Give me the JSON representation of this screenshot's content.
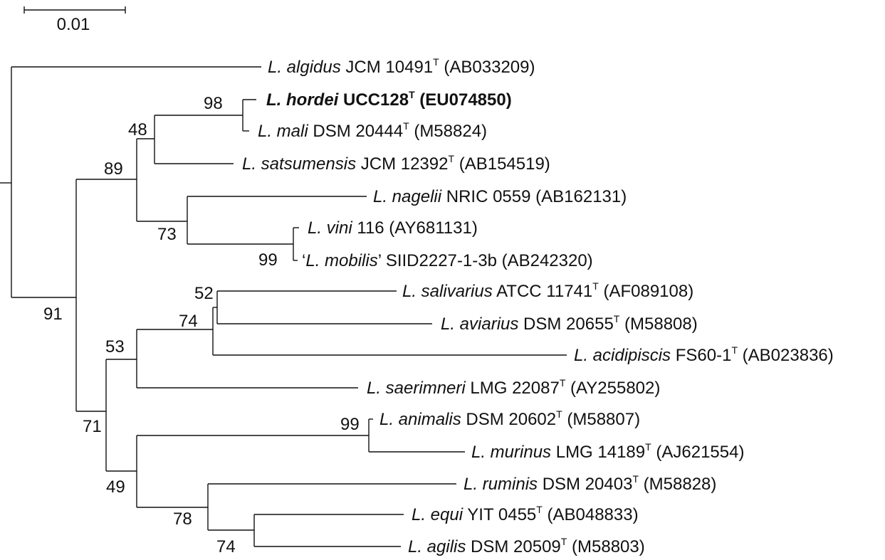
{
  "scale_bar": {
    "label": "0.01"
  },
  "taxa": [
    {
      "species": "L. algidus",
      "strain": " JCM 10491",
      "type_strain": true,
      "accession": " (AB033209)",
      "bold": false
    },
    {
      "species": "L. hordei",
      "strain": " UCC128",
      "type_strain": true,
      "accession": " (EU074850)",
      "bold": true
    },
    {
      "species": "L. mali",
      "strain": " DSM 20444",
      "type_strain": true,
      "accession": " (M58824)",
      "bold": false
    },
    {
      "species": "L. satsumensis",
      "strain": " JCM 12392",
      "type_strain": true,
      "accession": " (AB154519)",
      "bold": false
    },
    {
      "species": "L. nagelii",
      "strain": " NRIC 0559 (AB162131)",
      "type_strain": false,
      "accession": "",
      "bold": false
    },
    {
      "species": "L. vini",
      "strain": " 116 (AY681131)",
      "type_strain": false,
      "accession": "",
      "bold": false
    },
    {
      "prefix": "‘",
      "species": "L. mobilis",
      "strain": "’ SIID2227-1-3b (AB242320)",
      "type_strain": false,
      "accession": "",
      "bold": false
    },
    {
      "species": "L. salivarius",
      "strain": " ATCC 11741",
      "type_strain": true,
      "accession": " (AF089108)",
      "bold": false
    },
    {
      "species": "L. aviarius",
      "strain": " DSM 20655",
      "type_strain": true,
      "accession": " (M58808)",
      "bold": false
    },
    {
      "species": "L. acidipiscis",
      "strain": " FS60-1",
      "type_strain": true,
      "accession": " (AB023836)",
      "bold": false
    },
    {
      "species": "L. saerimneri",
      "strain": " LMG 22087",
      "type_strain": true,
      "accession": " (AY255802)",
      "bold": false
    },
    {
      "species": "L. animalis",
      "strain": " DSM 20602",
      "type_strain": true,
      "accession": " (M58807)",
      "bold": false
    },
    {
      "species": "L. murinus",
      "strain": " LMG 14189",
      "type_strain": true,
      "accession": " (AJ621554)",
      "bold": false
    },
    {
      "species": "L. ruminis",
      "strain": " DSM 20403",
      "type_strain": true,
      "accession": " (M58828)",
      "bold": false
    },
    {
      "species": "L. equi",
      "strain": " YIT 0455",
      "type_strain": true,
      "accession": " (AB048833)",
      "bold": false
    },
    {
      "species": "L. agilis",
      "strain": " DSM 20509",
      "type_strain": true,
      "accession": " (M58803)",
      "bold": false
    }
  ],
  "type_marker": "T",
  "bootstrap": {
    "hordei_mali": "98",
    "with_satsumensis": "48",
    "upper_clade": "89",
    "vini_mobilis": "99",
    "nagelii_group": "73",
    "salivarius_aviarius": "52",
    "with_acidipiscis": "74",
    "with_saerimneri": "53",
    "lower_clade": "71",
    "all_but_algidus": "91",
    "animalis_murinus": "99",
    "equi_agilis": "74",
    "ruminis_group": "78",
    "animalis_ruminis": "49"
  }
}
